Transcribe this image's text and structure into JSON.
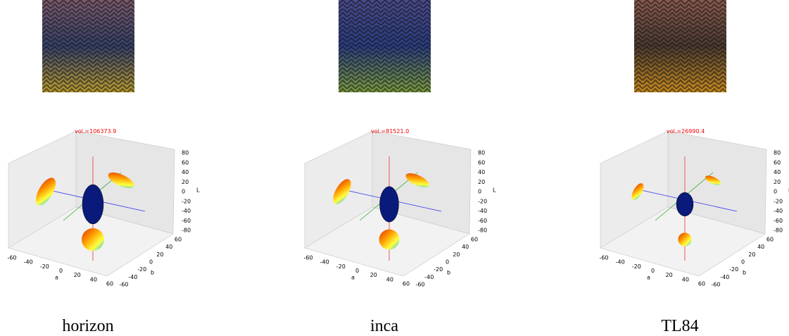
{
  "panels": [
    {
      "caption": "horizon",
      "volume_label": "vol.=106373.9"
    },
    {
      "caption": "inca",
      "volume_label": "vol.=81521.0"
    },
    {
      "caption": "TL84",
      "volume_label": "vol.=26990.4"
    }
  ],
  "axes": {
    "a_label": "a",
    "b_label": "b",
    "L_label": "L",
    "a_ticks": [
      -60,
      -40,
      -20,
      0,
      20,
      40,
      60
    ],
    "b_ticks": [
      -60,
      -40,
      -20,
      0,
      20,
      40,
      60
    ],
    "L_ticks": [
      -80,
      -60,
      -40,
      -20,
      0,
      20,
      40,
      60,
      80
    ]
  }
}
